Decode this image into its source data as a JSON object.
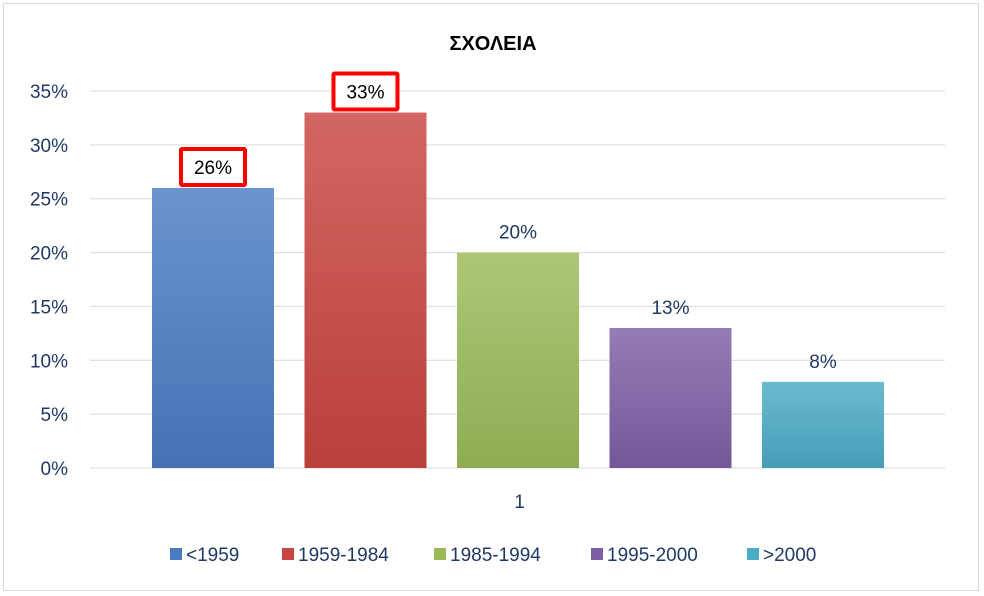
{
  "chart_data": {
    "type": "bar",
    "title": "ΣΧΟΛΕΙΑ",
    "categories": [
      "1"
    ],
    "series": [
      {
        "name": "<1959",
        "values": [
          26
        ],
        "label": "26%",
        "color": "#4a7cc4",
        "highlighted": true
      },
      {
        "name": "1959-1984",
        "values": [
          33
        ],
        "label": "33%",
        "color": "#c9453f",
        "highlighted": true
      },
      {
        "name": "1985-1994",
        "values": [
          20
        ],
        "label": "20%",
        "color": "#9bbb59",
        "highlighted": false
      },
      {
        "name": "1995-2000",
        "values": [
          13
        ],
        "label": "13%",
        "color": "#7e5fa5",
        "highlighted": false
      },
      {
        "name": ">2000",
        "values": [
          8
        ],
        "label": "8%",
        "color": "#4bacc6",
        "highlighted": false
      }
    ],
    "ylim": [
      0,
      35
    ],
    "yticks": [
      "0%",
      "5%",
      "10%",
      "15%",
      "20%",
      "25%",
      "30%",
      "35%"
    ],
    "grid": true,
    "legend_position": "bottom",
    "highlight_color": "#ff0000"
  }
}
